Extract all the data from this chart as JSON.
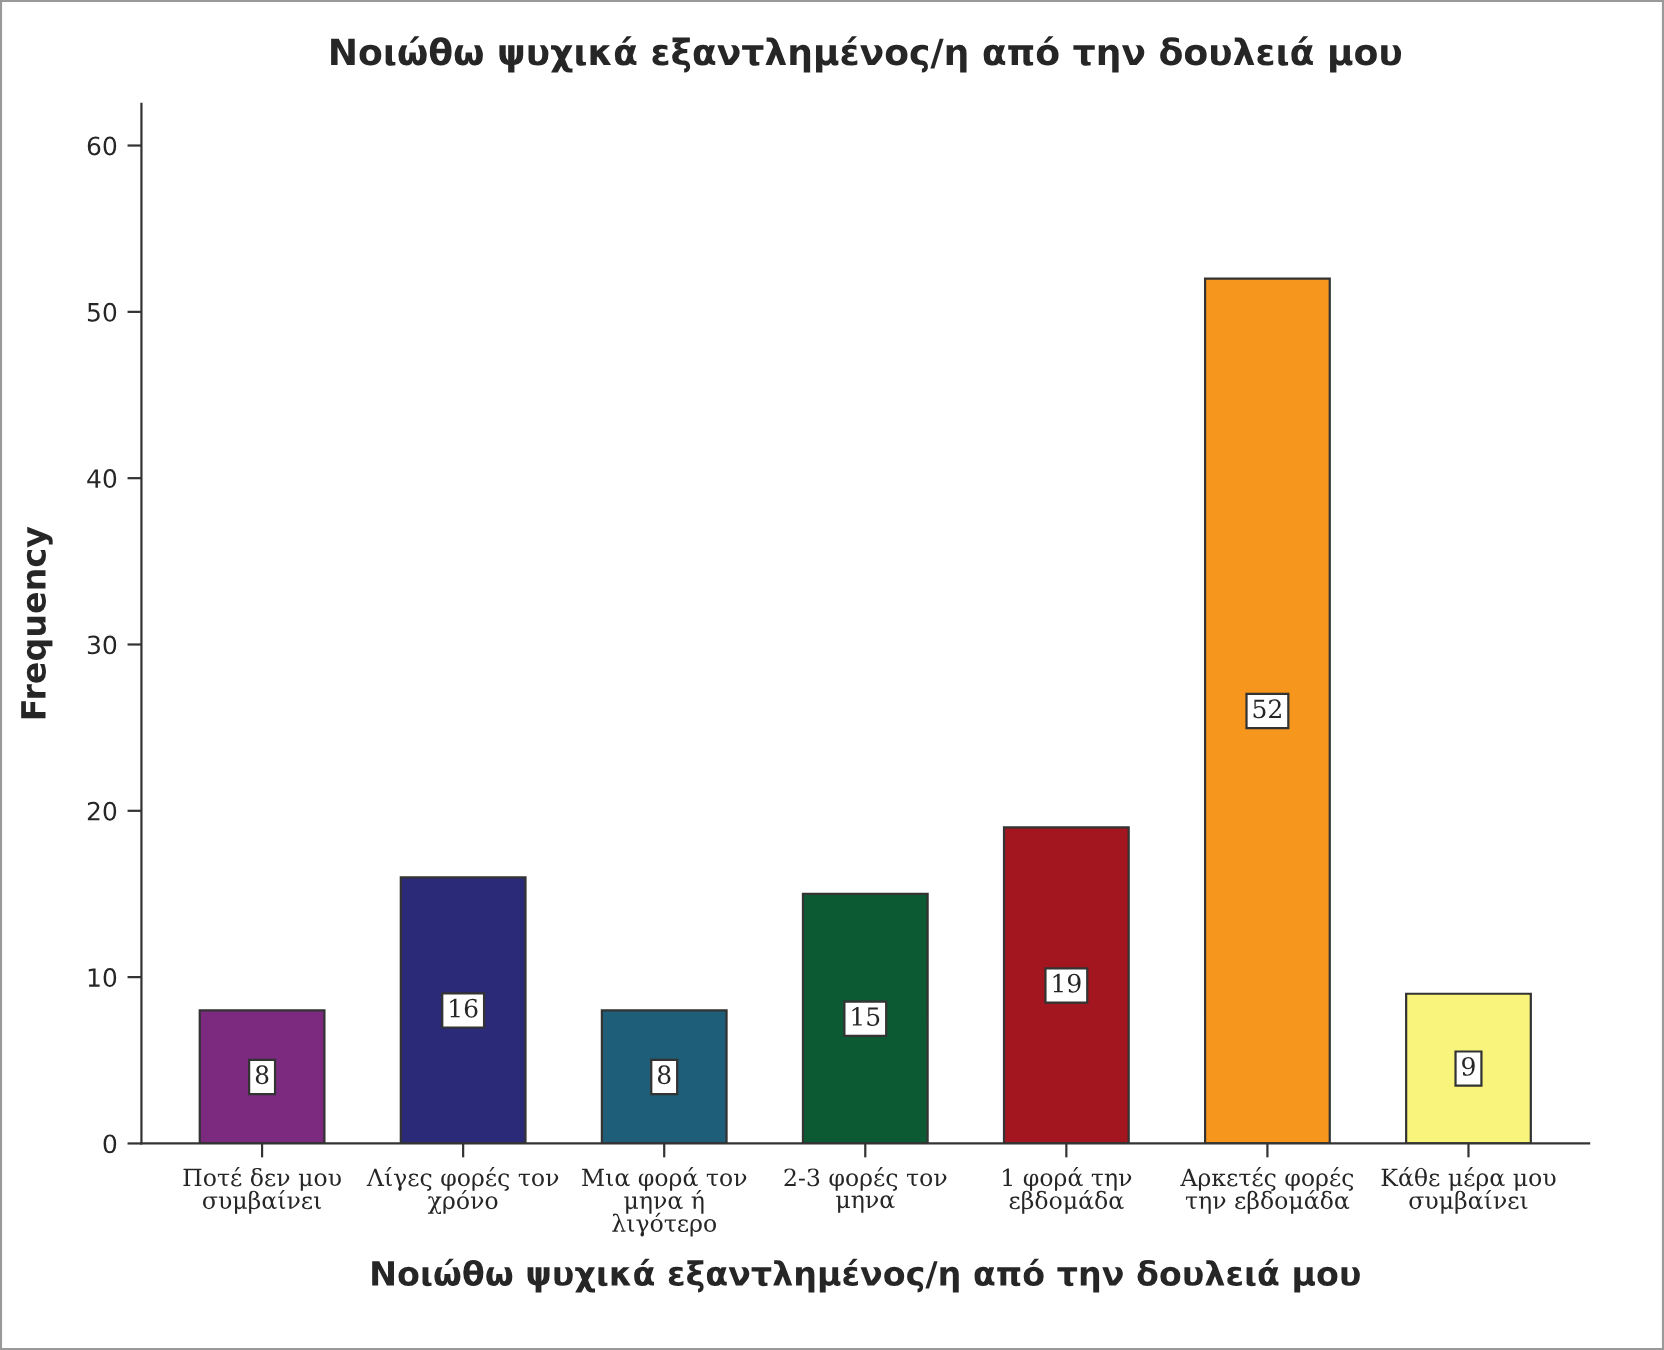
{
  "chart_data": {
    "type": "bar",
    "title": "Νοιώθω ψυχικά εξαντλημένος/η από την δουλειά μου",
    "xlabel": "Νοιώθω ψυχικά εξαντλημένος/η από την δουλειά μου",
    "ylabel": "Frequency",
    "categories": [
      "Ποτέ δεν μου\nσυμβαίνει",
      "Λίγες φορές τον\nχρόνο",
      "Μια φορά τον\nμηνα ή\nλιγότερο",
      "2-3 φορές τον\nμηνα",
      "1 φορά την\nεβδομάδα",
      "Αρκετές φορές\nτην εβδομάδα",
      "Κάθε μέρα μου\nσυμβαίνει"
    ],
    "values": [
      8,
      16,
      8,
      15,
      19,
      52,
      9
    ],
    "colors": [
      "#7b2a80",
      "#2b2a78",
      "#1e5e78",
      "#0c5a34",
      "#a3161f",
      "#f7961d",
      "#f8f47c"
    ],
    "ylim": [
      0,
      62.5
    ],
    "yticks": [
      0,
      10,
      20,
      30,
      40,
      50,
      60
    ],
    "grid": false,
    "data_labels": true
  }
}
